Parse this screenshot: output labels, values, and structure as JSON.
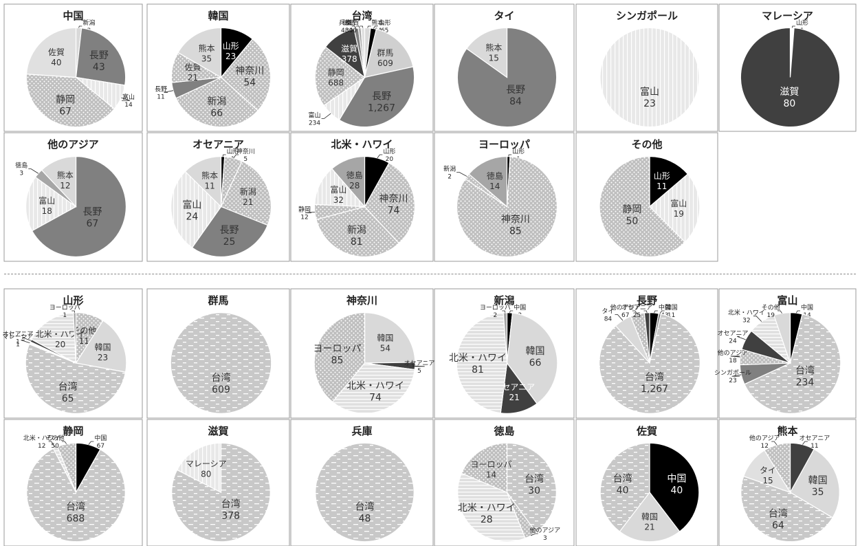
{
  "chart_data": [
    {
      "type": "pie",
      "title": "中国",
      "categories": [
        "新潟",
        "長野",
        "富山",
        "静岡",
        "佐賀"
      ],
      "values": [
        3,
        43,
        14,
        67,
        40
      ],
      "colors": [
        "#d9d9d9",
        "#808080",
        "#d9d9d9",
        "#bfbfbf",
        "#e0e0e0"
      ],
      "patterns": [
        "plain",
        "plain",
        "vstripe",
        "dots",
        "plain"
      ]
    },
    {
      "type": "pie",
      "title": "韓国",
      "categories": [
        "山形",
        "神奈川",
        "新潟",
        "長野",
        "佐賀",
        "熊本"
      ],
      "values": [
        23,
        54,
        66,
        11,
        21,
        35
      ],
      "colors": [
        "#000000",
        "#c8c8c8",
        "#bfbfbf",
        "#808080",
        "#e3e3e3",
        "#d9d9d9"
      ],
      "patterns": [
        "plain",
        "dots",
        "dots",
        "plain",
        "dots",
        "plain"
      ]
    },
    {
      "type": "pie",
      "title": "台湾",
      "categories": [
        "熊本",
        "山形",
        "群馬",
        "長野",
        "富山",
        "静岡",
        "滋賀",
        "兵庫",
        "徳島",
        "佐賀"
      ],
      "values": [
        64,
        65,
        609,
        1267,
        234,
        688,
        378,
        48,
        30,
        40
      ],
      "colors": [
        "#d9d9d9",
        "#000000",
        "#d0d0d0",
        "#808080",
        "#e8e8e8",
        "#bfbfbf",
        "#404040",
        "#808080",
        "#a6a6a6",
        "#e0e0e0"
      ],
      "patterns": [
        "plain",
        "plain",
        "plain",
        "plain",
        "vstripe",
        "dots",
        "plain",
        "plain",
        "plain",
        "plain"
      ]
    },
    {
      "type": "pie",
      "title": "タイ",
      "categories": [
        "長野",
        "熊本"
      ],
      "values": [
        84,
        15
      ],
      "colors": [
        "#808080",
        "#d9d9d9"
      ],
      "patterns": [
        "plain",
        "plain"
      ]
    },
    {
      "type": "pie",
      "title": "シンガポール",
      "categories": [
        "富山"
      ],
      "values": [
        23
      ],
      "colors": [
        "#e8e8e8"
      ],
      "patterns": [
        "vstripe"
      ]
    },
    {
      "type": "pie",
      "title": "マレーシア",
      "categories": [
        "山形",
        "滋賀"
      ],
      "values": [
        1,
        80
      ],
      "colors": [
        "#ffffff",
        "#404040"
      ],
      "patterns": [
        "plain",
        "plain"
      ]
    },
    {
      "type": "pie",
      "title": "他のアジア",
      "categories": [
        "長野",
        "富山",
        "徳島",
        "熊本"
      ],
      "values": [
        67,
        18,
        3,
        12
      ],
      "colors": [
        "#808080",
        "#e8e8e8",
        "#a6a6a6",
        "#d9d9d9"
      ],
      "patterns": [
        "plain",
        "vstripe",
        "plain",
        "plain"
      ]
    },
    {
      "type": "pie",
      "title": "オセアニア",
      "categories": [
        "山形",
        "神奈川",
        "新潟",
        "長野",
        "富山",
        "熊本"
      ],
      "values": [
        1,
        5,
        21,
        25,
        24,
        11
      ],
      "colors": [
        "#000000",
        "#c8c8c8",
        "#bfbfbf",
        "#808080",
        "#e8e8e8",
        "#d9d9d9"
      ],
      "patterns": [
        "plain",
        "dots",
        "dots",
        "plain",
        "vstripe",
        "plain"
      ]
    },
    {
      "type": "pie",
      "title": "北米・ハワイ",
      "categories": [
        "山形",
        "神奈川",
        "新潟",
        "静岡",
        "富山",
        "徳島"
      ],
      "values": [
        20,
        74,
        81,
        12,
        32,
        28
      ],
      "colors": [
        "#000000",
        "#c8c8c8",
        "#bfbfbf",
        "#bfbfbf",
        "#e8e8e8",
        "#a6a6a6"
      ],
      "patterns": [
        "plain",
        "dots",
        "dots",
        "dots",
        "vstripe",
        "plain"
      ]
    },
    {
      "type": "pie",
      "title": "ヨーロッパ",
      "categories": [
        "山形",
        "神奈川",
        "新潟",
        "徳島"
      ],
      "values": [
        1,
        85,
        2,
        14
      ],
      "colors": [
        "#000000",
        "#c8c8c8",
        "#bfbfbf",
        "#a6a6a6"
      ],
      "patterns": [
        "plain",
        "dots",
        "dots",
        "plain"
      ]
    },
    {
      "type": "pie",
      "title": "その他",
      "categories": [
        "山形",
        "富山",
        "静岡"
      ],
      "values": [
        11,
        19,
        50
      ],
      "colors": [
        "#000000",
        "#e8e8e8",
        "#bfbfbf"
      ],
      "patterns": [
        "plain",
        "vstripe",
        "dots"
      ]
    },
    {
      "type": "pie",
      "title": "山形",
      "categories": [
        "その他",
        "韓国",
        "台湾",
        "マレーシア",
        "オセアニア",
        "北米・ハワイ",
        "ヨーロッパ"
      ],
      "values": [
        11,
        23,
        65,
        1,
        1,
        20,
        1
      ],
      "colors": [
        "#bfbfbf",
        "#d9d9d9",
        "#c8c8c8",
        "#ffffff",
        "#404040",
        "#e0e0e0",
        "#a6a6a6"
      ],
      "patterns": [
        "dots",
        "plain",
        "dash",
        "plain",
        "plain",
        "hstripe",
        "plain"
      ]
    },
    {
      "type": "pie",
      "title": "群馬",
      "categories": [
        "台湾"
      ],
      "values": [
        609
      ],
      "colors": [
        "#c8c8c8"
      ],
      "patterns": [
        "dash"
      ]
    },
    {
      "type": "pie",
      "title": "神奈川",
      "categories": [
        "韓国",
        "オセアニア",
        "北米・ハワイ",
        "ヨーロッパ"
      ],
      "values": [
        54,
        5,
        74,
        85
      ],
      "colors": [
        "#d9d9d9",
        "#404040",
        "#e0e0e0",
        "#a6a6a6"
      ],
      "patterns": [
        "plain",
        "plain",
        "hstripe",
        "dots"
      ]
    },
    {
      "type": "pie",
      "title": "新潟",
      "categories": [
        "中国",
        "韓国",
        "オセアニア",
        "北米・ハワイ",
        "ヨーロッパ"
      ],
      "values": [
        3,
        66,
        21,
        81,
        2
      ],
      "colors": [
        "#000000",
        "#d9d9d9",
        "#404040",
        "#e0e0e0",
        "#a6a6a6"
      ],
      "patterns": [
        "plain",
        "plain",
        "plain",
        "hstripe",
        "plain"
      ]
    },
    {
      "type": "pie",
      "title": "長野",
      "categories": [
        "中国",
        "韓国",
        "台湾",
        "タイ",
        "他のアジア",
        "オセアニア"
      ],
      "values": [
        43,
        11,
        1267,
        84,
        67,
        25
      ],
      "colors": [
        "#000000",
        "#808080",
        "#c8c8c8",
        "#d9d9d9",
        "#bfbfbf",
        "#404040"
      ],
      "patterns": [
        "plain",
        "plain",
        "dash",
        "plain",
        "dots",
        "plain"
      ]
    },
    {
      "type": "pie",
      "title": "富山",
      "categories": [
        "中国",
        "台湾",
        "シンガポール",
        "他のアジア",
        "オセアニア",
        "北米・ハワイ",
        "その他"
      ],
      "values": [
        14,
        234,
        23,
        18,
        24,
        32,
        19
      ],
      "colors": [
        "#000000",
        "#c8c8c8",
        "#808080",
        "#bfbfbf",
        "#404040",
        "#e0e0e0",
        "#d9d9d9"
      ],
      "patterns": [
        "plain",
        "dash",
        "plain",
        "dots",
        "plain",
        "hstripe",
        "plain"
      ]
    },
    {
      "type": "pie",
      "title": "静岡",
      "categories": [
        "中国",
        "台湾",
        "北米・ハワイ",
        "その他"
      ],
      "values": [
        67,
        688,
        12,
        50
      ],
      "colors": [
        "#000000",
        "#c8c8c8",
        "#e0e0e0",
        "#bfbfbf"
      ],
      "patterns": [
        "plain",
        "dash",
        "hstripe",
        "dots"
      ]
    },
    {
      "type": "pie",
      "title": "滋賀",
      "categories": [
        "台湾",
        "マレーシア"
      ],
      "values": [
        378,
        80
      ],
      "colors": [
        "#c8c8c8",
        "#e8e8e8"
      ],
      "patterns": [
        "dash",
        "vstripe"
      ]
    },
    {
      "type": "pie",
      "title": "兵庫",
      "categories": [
        "台湾"
      ],
      "values": [
        48
      ],
      "colors": [
        "#c8c8c8"
      ],
      "patterns": [
        "dash"
      ]
    },
    {
      "type": "pie",
      "title": "徳島",
      "categories": [
        "台湾",
        "他のアジア",
        "北米・ハワイ",
        "ヨーロッパ"
      ],
      "values": [
        30,
        3,
        28,
        14
      ],
      "colors": [
        "#c8c8c8",
        "#bfbfbf",
        "#e0e0e0",
        "#a6a6a6"
      ],
      "patterns": [
        "dash",
        "dots",
        "hstripe",
        "dots"
      ]
    },
    {
      "type": "pie",
      "title": "佐賀",
      "categories": [
        "中国",
        "韓国",
        "台湾"
      ],
      "values": [
        40,
        21,
        40
      ],
      "colors": [
        "#000000",
        "#d9d9d9",
        "#c8c8c8"
      ],
      "patterns": [
        "plain",
        "plain",
        "dash"
      ]
    },
    {
      "type": "pie",
      "title": "熊本",
      "categories": [
        "オセアニア",
        "韓国",
        "台湾",
        "タイ",
        "他のアジア"
      ],
      "values": [
        11,
        35,
        64,
        15,
        12
      ],
      "colors": [
        "#404040",
        "#d9d9d9",
        "#c8c8c8",
        "#e0e0e0",
        "#bfbfbf"
      ],
      "patterns": [
        "plain",
        "plain",
        "dash",
        "plain",
        "dots"
      ]
    }
  ]
}
